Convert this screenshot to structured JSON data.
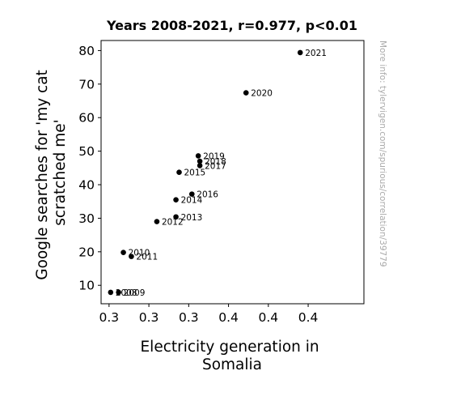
{
  "chart_data": {
    "type": "scatter",
    "title": "Years 2008-2021, r=0.977, p<0.01",
    "xlabel": [
      "Electricity generation in",
      "Somalia"
    ],
    "ylabel": [
      "Google searches for 'my cat",
      "scratched me'"
    ],
    "xlim": [
      0.295,
      0.46
    ],
    "ylim": [
      4.5,
      83
    ],
    "x_ticks": [
      {
        "value": 0.3,
        "label": "0.3"
      },
      {
        "value": 0.325,
        "label": "0.3"
      },
      {
        "value": 0.35,
        "label": "0.3"
      },
      {
        "value": 0.375,
        "label": "0.4"
      },
      {
        "value": 0.4,
        "label": "0.4"
      },
      {
        "value": 0.425,
        "label": "0.4"
      }
    ],
    "y_ticks": [
      10,
      20,
      30,
      40,
      50,
      60,
      70,
      80
    ],
    "grid": false,
    "point_color": "#000000",
    "points": [
      {
        "label": "2008",
        "x": 0.301,
        "y": 7.9
      },
      {
        "label": "2009",
        "x": 0.306,
        "y": 7.9
      },
      {
        "label": "2010",
        "x": 0.309,
        "y": 19.8
      },
      {
        "label": "2011",
        "x": 0.314,
        "y": 18.6
      },
      {
        "label": "2012",
        "x": 0.33,
        "y": 29.0
      },
      {
        "label": "2013",
        "x": 0.342,
        "y": 30.4
      },
      {
        "label": "2014",
        "x": 0.342,
        "y": 35.5
      },
      {
        "label": "2015",
        "x": 0.344,
        "y": 43.7
      },
      {
        "label": "2016",
        "x": 0.352,
        "y": 37.2
      },
      {
        "label": "2017",
        "x": 0.357,
        "y": 45.7
      },
      {
        "label": "2018",
        "x": 0.357,
        "y": 47.0
      },
      {
        "label": "2019",
        "x": 0.356,
        "y": 48.6
      },
      {
        "label": "2020",
        "x": 0.386,
        "y": 67.4
      },
      {
        "label": "2021",
        "x": 0.42,
        "y": 79.4
      }
    ]
  },
  "watermark": "More info: tylervigen.com/spurious/correlation/39779"
}
